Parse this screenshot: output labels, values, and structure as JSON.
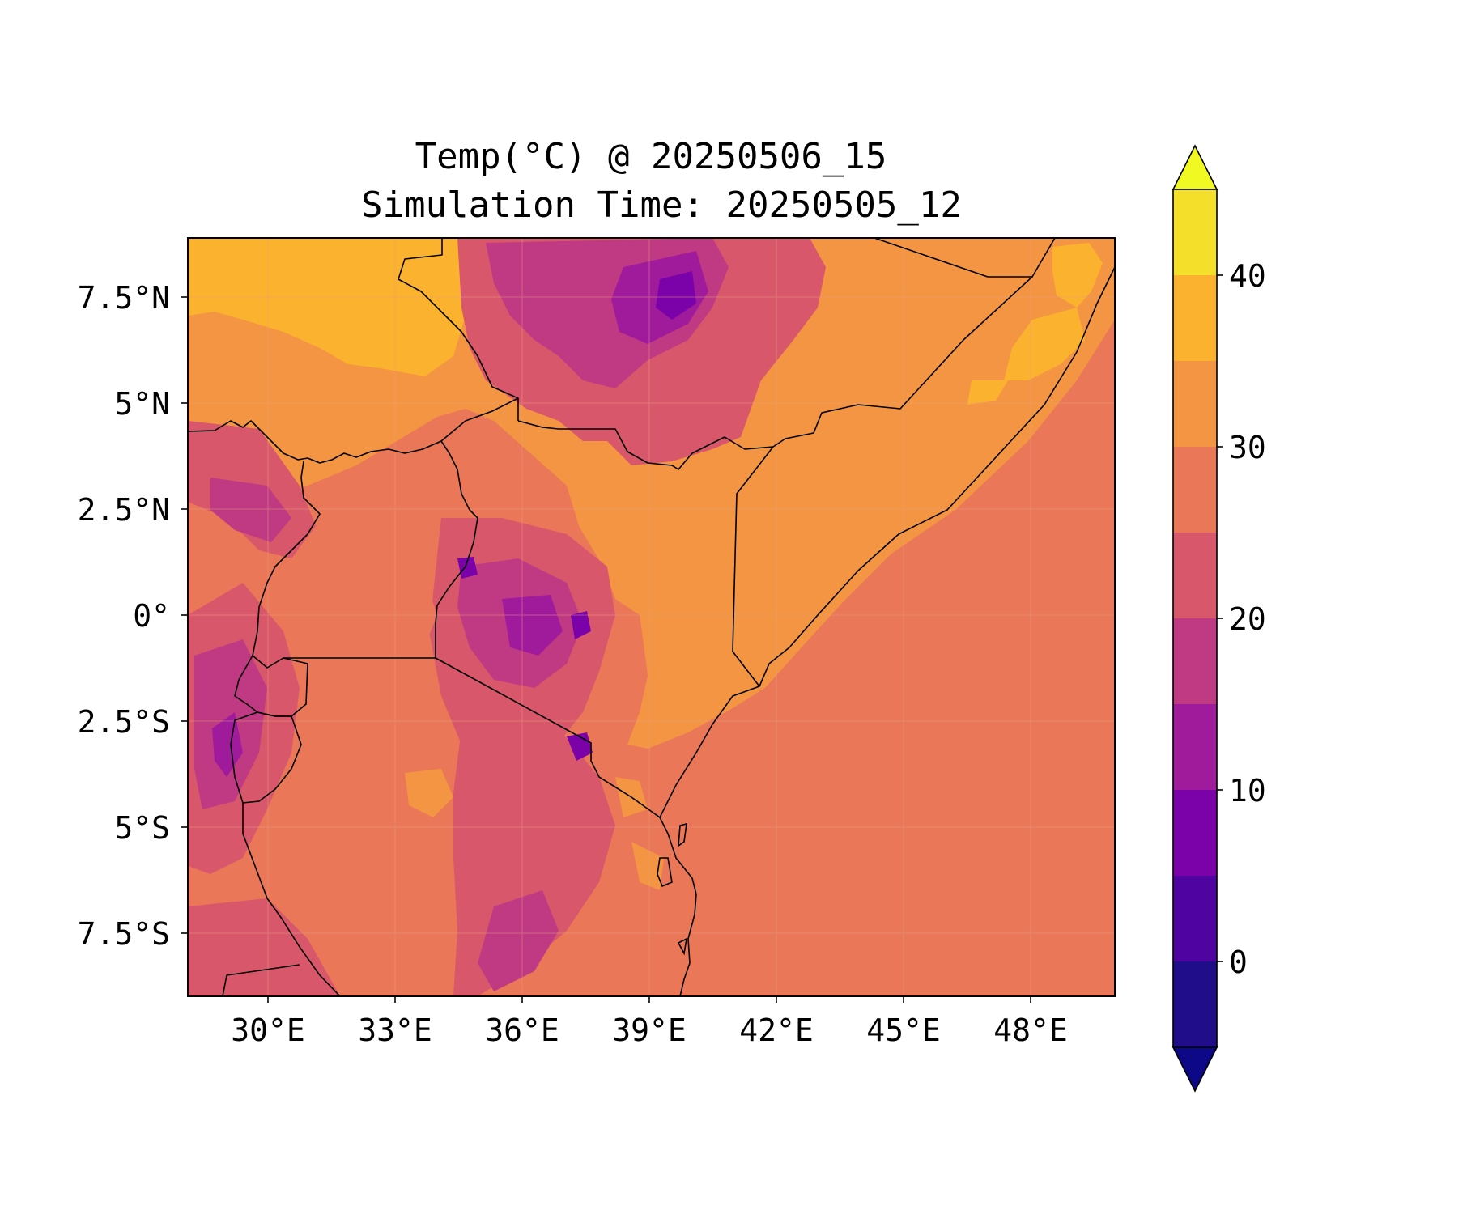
{
  "title": {
    "line1": "Temp(°C) @ 20250506_15",
    "line2": "Simulation Time: 20250505_12"
  },
  "map": {
    "x_ticks": [
      "30°E",
      "33°E",
      "36°E",
      "39°E",
      "42°E",
      "45°E",
      "48°E"
    ],
    "y_ticks": [
      "7.5°N",
      "5°N",
      "2.5°N",
      "0°",
      "2.5°S",
      "5°S",
      "7.5°S"
    ],
    "ocean_color": "#e97758",
    "land_base_color": "#f39543"
  },
  "colorbar": {
    "tick_labels": [
      "40",
      "30",
      "20",
      "10",
      "0"
    ],
    "extend": "both",
    "levels": [
      -5,
      0,
      5,
      10,
      15,
      20,
      25,
      30,
      35,
      40,
      45
    ],
    "colors": [
      "#1f0d8a",
      "#4f03a1",
      "#7b02a8",
      "#a01a9c",
      "#c03a83",
      "#d8576b",
      "#e97758",
      "#f39543",
      "#fbb32f",
      "#f4e02b"
    ],
    "under_color": "#0d0887",
    "over_color": "#f0f921"
  }
}
